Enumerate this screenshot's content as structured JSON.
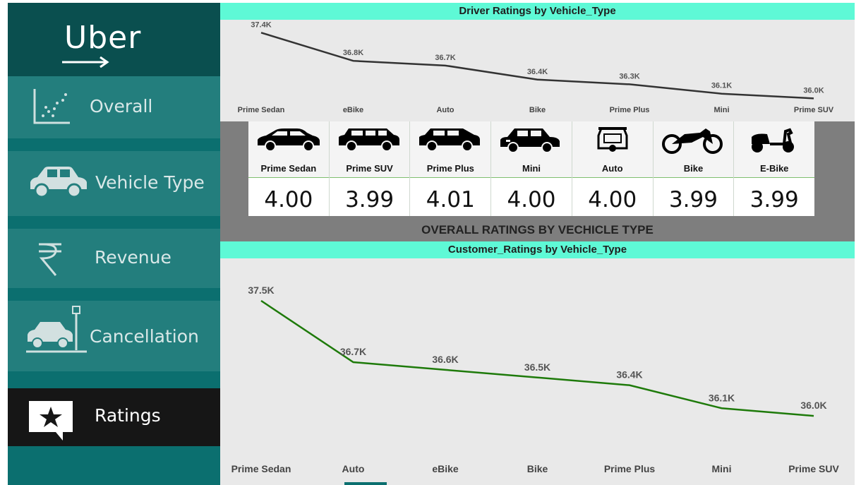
{
  "brand": {
    "logo_text": "Uber"
  },
  "nav": {
    "items": [
      {
        "label": "Overall",
        "icon": "scatter-chart-icon",
        "active": false
      },
      {
        "label": "Vehicle Type",
        "icon": "car-icon",
        "active": false
      },
      {
        "label": "Revenue",
        "icon": "rupee-icon",
        "active": false
      },
      {
        "label": "Cancellation",
        "icon": "car-crash-icon",
        "active": false
      },
      {
        "label": "Ratings",
        "icon": "star-chat-icon",
        "active": true
      }
    ]
  },
  "colors": {
    "band": "#5ef9d6",
    "sidebar": "#0b6f6f",
    "driver_line": "#333333",
    "customer_line": "#1e7a0a"
  },
  "ratings_section": {
    "title": "OVERALL RATINGS BY VECHICLE TYPE",
    "cards": [
      {
        "name": "Prime Sedan",
        "value": "4.00",
        "icon": "sedan-icon"
      },
      {
        "name": "Prime SUV",
        "value": "3.99",
        "icon": "suv-icon"
      },
      {
        "name": "Prime Plus",
        "value": "4.01",
        "icon": "hatchback-icon"
      },
      {
        "name": "Mini",
        "value": "4.00",
        "icon": "mini-car-icon"
      },
      {
        "name": "Auto",
        "value": "4.00",
        "icon": "auto-rickshaw-icon"
      },
      {
        "name": "Bike",
        "value": "3.99",
        "icon": "motorbike-icon"
      },
      {
        "name": "E-Bike",
        "value": "3.99",
        "icon": "scooter-icon"
      }
    ]
  },
  "chart_data": [
    {
      "type": "line",
      "title": "Driver Ratings by Vehicle_Type",
      "categories": [
        "Prime Sedan",
        "eBike",
        "Auto",
        "Bike",
        "Prime Plus",
        "Mini",
        "Prime SUV"
      ],
      "values": [
        37.4,
        36.8,
        36.7,
        36.4,
        36.3,
        36.1,
        36.0
      ],
      "labels": [
        "37.4K",
        "36.8K",
        "36.7K",
        "36.4K",
        "36.3K",
        "36.1K",
        "36.0K"
      ],
      "ylim": [
        35.9,
        37.45
      ]
    },
    {
      "type": "line",
      "title": "Customer_Ratings by Vehicle_Type",
      "categories": [
        "Prime Sedan",
        "Auto",
        "eBike",
        "Bike",
        "Prime Plus",
        "Mini",
        "Prime SUV"
      ],
      "values": [
        37.5,
        36.7,
        36.6,
        36.5,
        36.4,
        36.1,
        36.0
      ],
      "labels": [
        "37.5K",
        "36.7K",
        "36.6K",
        "36.5K",
        "36.4K",
        "36.1K",
        "36.0K"
      ],
      "ylim": [
        35.9,
        37.5
      ]
    }
  ]
}
